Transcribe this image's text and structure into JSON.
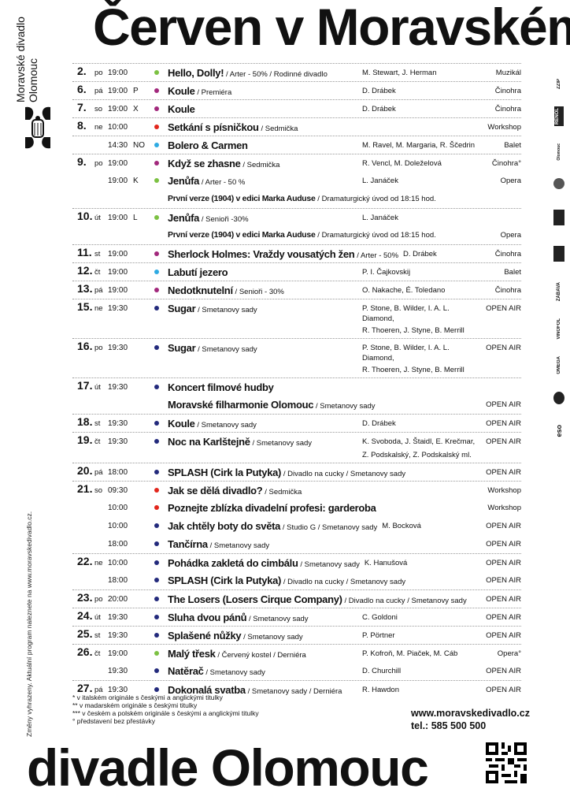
{
  "header": {
    "title": "Červen v Moravském"
  },
  "footer": {
    "title": "divadle Olomouc"
  },
  "brand": {
    "name_line1": "Moravské divadlo",
    "name_line2": "Olomouc"
  },
  "side_note": "Změny vyhrazeny. Aktuální program naleznete na www.moravskedivadlo.cz.",
  "colors": {
    "opera": "#7cc142",
    "drama": "#a2287c",
    "workshop": "#e2261c",
    "ballet": "#2eaae2",
    "openair": "#232a7c"
  },
  "entries": [
    {
      "day": "2.",
      "wd": "po",
      "time": "19:00",
      "code": "",
      "cat": "opera",
      "title": "Hello, Dolly!",
      "note": "/ Arter - 50% / Rodinné divadlo",
      "author": "M. Stewart, J. Herman",
      "genre": "Muzikál"
    },
    {
      "day": "6.",
      "wd": "pá",
      "time": "19:00",
      "code": "P",
      "cat": "drama",
      "title": "Koule",
      "note": "/ Premiéra",
      "author": "D. Drábek",
      "genre": "Činohra"
    },
    {
      "day": "7.",
      "wd": "so",
      "time": "19:00",
      "code": "X",
      "cat": "drama",
      "title": "Koule",
      "note": "",
      "author": "D. Drábek",
      "genre": "Činohra"
    },
    {
      "day": "8.",
      "wd": "ne",
      "time": "10:00",
      "code": "",
      "cat": "workshop",
      "title": "Setkání s písničkou",
      "note": "/ Sedmička",
      "author": "",
      "genre": "Workshop"
    },
    {
      "day": "",
      "wd": "",
      "time": "14:30",
      "code": "NO",
      "cat": "ballet",
      "title": "Bolero & Carmen",
      "note": "",
      "author": "M. Ravel, M. Margaria, R. Ščedrin",
      "genre": "Balet"
    },
    {
      "day": "9.",
      "wd": "po",
      "time": "19:00",
      "code": "",
      "cat": "drama",
      "title": "Když se zhasne",
      "note": "/ Sedmička",
      "author": "R. Vencl, M. Doleželová",
      "genre": "Činohra°"
    },
    {
      "day": "",
      "wd": "",
      "time": "19:00",
      "code": "K",
      "cat": "opera",
      "title": "Jenůfa",
      "note": "/ Arter - 50 %",
      "author": "L. Janáček",
      "genre": "Opera",
      "nodiv": true
    },
    {
      "sub": true,
      "title": "První verze (1904) v edici Marka Auduse",
      "note": "/ Dramaturgický úvod od 18:15 hod.",
      "genre": ""
    },
    {
      "day": "10.",
      "wd": "út",
      "time": "19:00",
      "code": "L",
      "cat": "opera",
      "title": "Jenůfa",
      "note": "/ Senioři -30%",
      "author": "L. Janáček",
      "genre": ""
    },
    {
      "sub": true,
      "title": "První verze (1904) v edici Marka Auduse",
      "note": "/ Dramaturgický úvod od 18:15 hod.",
      "genre": "Opera"
    },
    {
      "day": "11.",
      "wd": "st",
      "time": "19:00",
      "code": "",
      "cat": "drama",
      "title": "Sherlock Holmes: Vraždy vousatých žen",
      "note": "/ Arter - 50%",
      "author": "D. Drábek",
      "genre": "Činohra",
      "authorShift": true
    },
    {
      "day": "12.",
      "wd": "čt",
      "time": "19:00",
      "code": "",
      "cat": "ballet",
      "title": "Labutí jezero",
      "note": "",
      "author": "P. I. Čajkovskij",
      "genre": "Balet"
    },
    {
      "day": "13.",
      "wd": "pá",
      "time": "19:00",
      "code": "",
      "cat": "drama",
      "title": "Nedotknutelní",
      "note": "/ Senioři - 30%",
      "author": "O. Nakache, É. Toledano",
      "genre": "Činohra"
    },
    {
      "day": "15.",
      "wd": "ne",
      "time": "19:30",
      "code": "",
      "cat": "openair",
      "title": "Sugar",
      "note": "/ Smetanovy sady",
      "author": "P. Stone, B. Wilder, I. A. L. Diamond,",
      "genre": "OPEN AIR",
      "author2": "R. Thoeren, J. Styne, B. Merrill"
    },
    {
      "day": "16.",
      "wd": "po",
      "time": "19:30",
      "code": "",
      "cat": "openair",
      "title": "Sugar",
      "note": "/ Smetanovy sady",
      "author": "P. Stone, B. Wilder, I. A. L. Diamond,",
      "genre": "OPEN AIR",
      "author2": "R. Thoeren, J. Styne, B. Merrill"
    },
    {
      "day": "17.",
      "wd": "út",
      "time": "19:30",
      "code": "",
      "cat": "openair",
      "title": "Koncert filmové hudby",
      "note": "",
      "author": "",
      "genre": ""
    },
    {
      "sub": true,
      "big": true,
      "title": "Moravské filharmonie Olomouc",
      "note": "/ Smetanovy sady",
      "genre": "OPEN AIR"
    },
    {
      "day": "18.",
      "wd": "st",
      "time": "19:30",
      "code": "",
      "cat": "openair",
      "title": "Koule",
      "note": "/ Smetanovy sady",
      "author": "D. Drábek",
      "genre": "OPEN AIR"
    },
    {
      "day": "19.",
      "wd": "čt",
      "time": "19:30",
      "code": "",
      "cat": "openair",
      "title": "Noc na Karlštejně",
      "note": "/ Smetanovy sady",
      "author": "K. Svoboda, J. Štaidl, E. Krečmar,",
      "genre": "OPEN AIR",
      "author2": "Z. Podskalský, Z. Podskalský ml."
    },
    {
      "day": "20.",
      "wd": "pá",
      "time": "18:00",
      "code": "",
      "cat": "openair",
      "title": "SPLASH (Cirk la Putyka)",
      "note": "/ Divadlo na cucky / Smetanovy sady",
      "author": "",
      "genre": "OPEN AIR"
    },
    {
      "day": "21.",
      "wd": "so",
      "time": "09:30",
      "code": "",
      "cat": "workshop",
      "title": "Jak se dělá divadlo?",
      "note": "/ Sedmička",
      "author": "",
      "genre": "Workshop"
    },
    {
      "day": "",
      "wd": "",
      "time": "10:00",
      "code": "",
      "cat": "workshop",
      "title": "Poznejte zblízka divadelní profesi: garderoba",
      "note": "",
      "author": "",
      "genre": "Workshop",
      "nodiv": true
    },
    {
      "day": "",
      "wd": "",
      "time": "10:00",
      "code": "",
      "cat": "openair",
      "title": "Jak chtěly boty do světa",
      "note": "/ Studio G / Smetanovy sady",
      "author": "M. Bocková",
      "genre": "OPEN AIR",
      "nodiv": true,
      "authorShift2": true
    },
    {
      "day": "",
      "wd": "",
      "time": "18:00",
      "code": "",
      "cat": "openair",
      "title": "Tančírna",
      "note": "/ Smetanovy sady",
      "author": "",
      "genre": "OPEN AIR",
      "nodiv": true
    },
    {
      "day": "22.",
      "wd": "ne",
      "time": "10:00",
      "code": "",
      "cat": "openair",
      "title": "Pohádka zakletá do cimbálu",
      "note": "/ Smetanovy sady",
      "author": "K. Hanušová",
      "genre": "OPEN AIR",
      "authorShift": true
    },
    {
      "day": "",
      "wd": "",
      "time": "18:00",
      "code": "",
      "cat": "openair",
      "title": "SPLASH (Cirk la Putyka)",
      "note": "/ Divadlo na cucky / Smetanovy sady",
      "author": "",
      "genre": "OPEN AIR",
      "nodiv": true
    },
    {
      "day": "23.",
      "wd": "po",
      "time": "20:00",
      "code": "",
      "cat": "openair",
      "title": "The Losers (Losers Cirque Company)",
      "note": "/ Divadlo na cucky / Smetanovy sady",
      "author": "",
      "genre": "OPEN AIR"
    },
    {
      "day": "24.",
      "wd": "út",
      "time": "19:30",
      "code": "",
      "cat": "openair",
      "title": "Sluha dvou pánů",
      "note": "/ Smetanovy sady",
      "author": "C. Goldoni",
      "genre": "OPEN AIR"
    },
    {
      "day": "25.",
      "wd": "st",
      "time": "19:30",
      "code": "",
      "cat": "openair",
      "title": "Splašené nůžky",
      "note": "/ Smetanovy sady",
      "author": "P. Pörtner",
      "genre": "OPEN AIR"
    },
    {
      "day": "26.",
      "wd": "čt",
      "time": "19:00",
      "code": "",
      "cat": "opera",
      "title": "Malý třesk",
      "note": "/ Červený kostel / Derniéra",
      "author": "P. Kofroň, M. Piaček, M. Cáb",
      "genre": "Opera°"
    },
    {
      "day": "",
      "wd": "",
      "time": "19:30",
      "code": "",
      "cat": "openair",
      "title": "Natěrač",
      "note": "/ Smetanovy sady",
      "author": "D. Churchill",
      "genre": "OPEN AIR",
      "nodiv": true
    },
    {
      "day": "27.",
      "wd": "pá",
      "time": "19:30",
      "code": "",
      "cat": "openair",
      "title": "Dokonalá svatba",
      "note": "/ Smetanovy sady / Derniéra",
      "author": "R. Hawdon",
      "genre": "OPEN AIR"
    }
  ],
  "footnotes": [
    "* v italském originále s českými a anglickými titulky",
    "** v madarském originále s českými titulky",
    "*** v českém a polském originále s českými a anglickými titulky",
    "° představení bez přestávky"
  ],
  "contact": {
    "web": "www.moravskedivadlo.cz",
    "phone": "tel.: 585 500 500"
  },
  "sponsors": [
    "ZZIP",
    "RENOL",
    "Olomouc",
    "",
    "",
    "",
    "ZÁBAVA",
    "VINOFOL",
    "OMEGA",
    "",
    "eso"
  ]
}
